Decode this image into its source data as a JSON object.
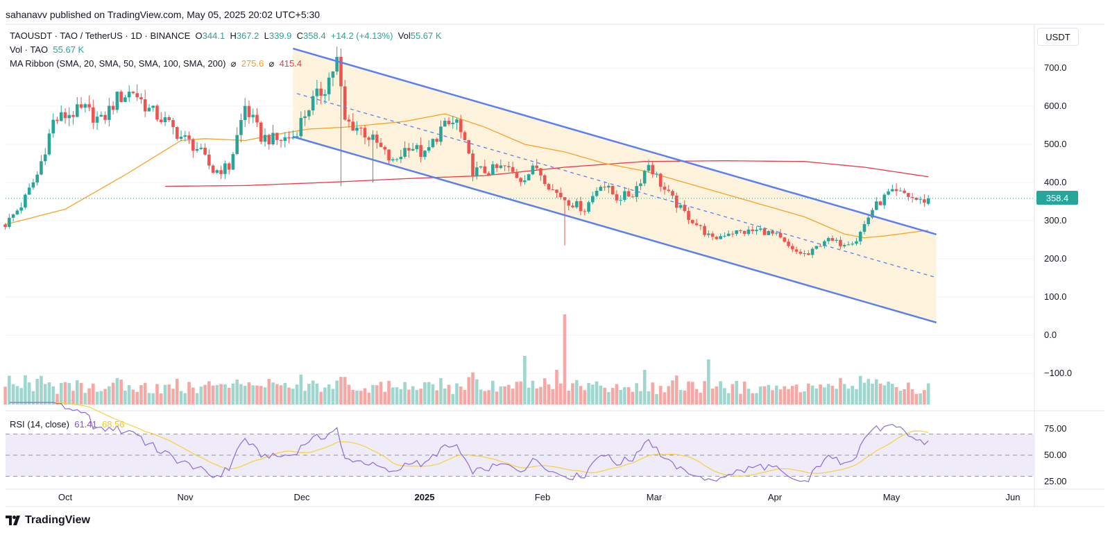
{
  "publish_line": "sahanavv published on TradingView.com, May 05, 2025 20:02 UTC+5:30",
  "legend": {
    "symbol": "TAOUSDT · TAO / TetherUS · 1D · BINANCE",
    "o_label": "O",
    "o": "344.1",
    "h_label": "H",
    "h": "367.2",
    "l_label": "L",
    "l": "339.9",
    "c_label": "C",
    "c": "358.4",
    "change": "+14.2 (+4.13%)",
    "vol_label": "Vol",
    "vol": "55.67 K",
    "vol_indicator": "Vol · TAO",
    "vol_indicator_value": "55.67 K",
    "ma_ribbon": "MA Ribbon (SMA, 20, SMA, 50, SMA, 100, SMA, 200)",
    "ma_sym": "⌀",
    "ma_value_1": "275.6",
    "ma_value_2": "415.4",
    "rsi_label": "RSI (14, close)",
    "rsi_value": "61.41",
    "rsi_ma_value": "68.56"
  },
  "axis": {
    "currency": "USDT",
    "current_price": "358.4",
    "price_ticks": [
      "700.0",
      "600.0",
      "500.0",
      "400.0",
      "300.0",
      "200.0",
      "100.0",
      "0.0",
      "−100.0"
    ],
    "rsi_ticks": [
      "75.00",
      "50.00",
      "25.00"
    ],
    "time_ticks": [
      "Oct",
      "Nov",
      "Dec",
      "2025",
      "Feb",
      "Mar",
      "Apr",
      "May",
      "Jun"
    ]
  },
  "brand": "TradingView",
  "colors": {
    "up": "#26a69a",
    "down": "#ef5350",
    "vol_up": "#9fd7cf",
    "vol_down": "#f7a7a4",
    "channel": "#5a7ff0",
    "channel_fill": "#fdf3dc",
    "ma50": "#f7a325",
    "ma200": "#f23645",
    "rsi": "#8e6bd6",
    "rsi_ma": "#f5d23c",
    "rsi_band": "#efebf8"
  },
  "chart_data": {
    "type": "candlestick",
    "title": "TAOUSDT · TAO / TetherUS · 1D · BINANCE",
    "x_unit": "days since 2024-09-16",
    "ylim": [
      -100,
      750
    ],
    "close_keypoints": [
      [
        0,
        290
      ],
      [
        4,
        340
      ],
      [
        8,
        420
      ],
      [
        12,
        560
      ],
      [
        16,
        580
      ],
      [
        20,
        590
      ],
      [
        24,
        560
      ],
      [
        28,
        620
      ],
      [
        32,
        640
      ],
      [
        36,
        590
      ],
      [
        40,
        560
      ],
      [
        44,
        520
      ],
      [
        48,
        490
      ],
      [
        52,
        430
      ],
      [
        56,
        440
      ],
      [
        60,
        600
      ],
      [
        64,
        520
      ],
      [
        68,
        510
      ],
      [
        72,
        520
      ],
      [
        76,
        600
      ],
      [
        80,
        650
      ],
      [
        83,
        720
      ],
      [
        85,
        560
      ],
      [
        89,
        540
      ],
      [
        93,
        500
      ],
      [
        97,
        450
      ],
      [
        101,
        500
      ],
      [
        105,
        470
      ],
      [
        109,
        540
      ],
      [
        113,
        560
      ],
      [
        117,
        430
      ],
      [
        121,
        430
      ],
      [
        125,
        440
      ],
      [
        129,
        410
      ],
      [
        133,
        440
      ],
      [
        137,
        380
      ],
      [
        141,
        350
      ],
      [
        145,
        330
      ],
      [
        149,
        400
      ],
      [
        153,
        360
      ],
      [
        157,
        370
      ],
      [
        161,
        450
      ],
      [
        165,
        380
      ],
      [
        169,
        330
      ],
      [
        173,
        290
      ],
      [
        177,
        250
      ],
      [
        181,
        270
      ],
      [
        185,
        270
      ],
      [
        189,
        275
      ],
      [
        193,
        260
      ],
      [
        197,
        220
      ],
      [
        201,
        210
      ],
      [
        205,
        250
      ],
      [
        209,
        240
      ],
      [
        213,
        250
      ],
      [
        217,
        330
      ],
      [
        221,
        370
      ],
      [
        225,
        370
      ],
      [
        229,
        350
      ],
      [
        231,
        358.4
      ]
    ],
    "last_candle": {
      "open": 344.1,
      "high": 367.2,
      "low": 339.9,
      "close": 358.4,
      "volume": "55.67K"
    },
    "notable_wicks": [
      [
        84,
        390
      ],
      [
        92,
        400
      ],
      [
        140,
        235
      ]
    ],
    "volume_spikes": [
      [
        130,
        1.4
      ],
      [
        140,
        2.6
      ],
      [
        138,
        1.0
      ],
      [
        160,
        1.0
      ],
      [
        176,
        1.3
      ]
    ],
    "ma50": [
      [
        0,
        290
      ],
      [
        15,
        330
      ],
      [
        30,
        420
      ],
      [
        44,
        510
      ],
      [
        50,
        515
      ],
      [
        60,
        510
      ],
      [
        70,
        530
      ],
      [
        76,
        540
      ],
      [
        85,
        545
      ],
      [
        100,
        560
      ],
      [
        110,
        580
      ],
      [
        120,
        545
      ],
      [
        130,
        500
      ],
      [
        140,
        480
      ],
      [
        150,
        450
      ],
      [
        160,
        430
      ],
      [
        170,
        400
      ],
      [
        180,
        370
      ],
      [
        190,
        340
      ],
      [
        200,
        310
      ],
      [
        210,
        265
      ],
      [
        215,
        255
      ],
      [
        220,
        260
      ],
      [
        231,
        275
      ]
    ],
    "ma200": [
      [
        40,
        390
      ],
      [
        60,
        392
      ],
      [
        80,
        400
      ],
      [
        100,
        410
      ],
      [
        120,
        418
      ],
      [
        140,
        440
      ],
      [
        160,
        455
      ],
      [
        180,
        457
      ],
      [
        200,
        455
      ],
      [
        215,
        440
      ],
      [
        231,
        415
      ]
    ],
    "channel": {
      "upper": [
        [
          72,
          751
        ],
        [
          233,
          264
        ]
      ],
      "middle": [
        [
          73,
          633
        ],
        [
          233,
          151
        ]
      ],
      "lower": [
        [
          72,
          520
        ],
        [
          233,
          33
        ]
      ]
    },
    "rsi": {
      "period": 14,
      "last": 61.41,
      "ma_last": 68.56,
      "bands": [
        70,
        50,
        30
      ],
      "ylim": [
        20,
        85
      ]
    }
  }
}
